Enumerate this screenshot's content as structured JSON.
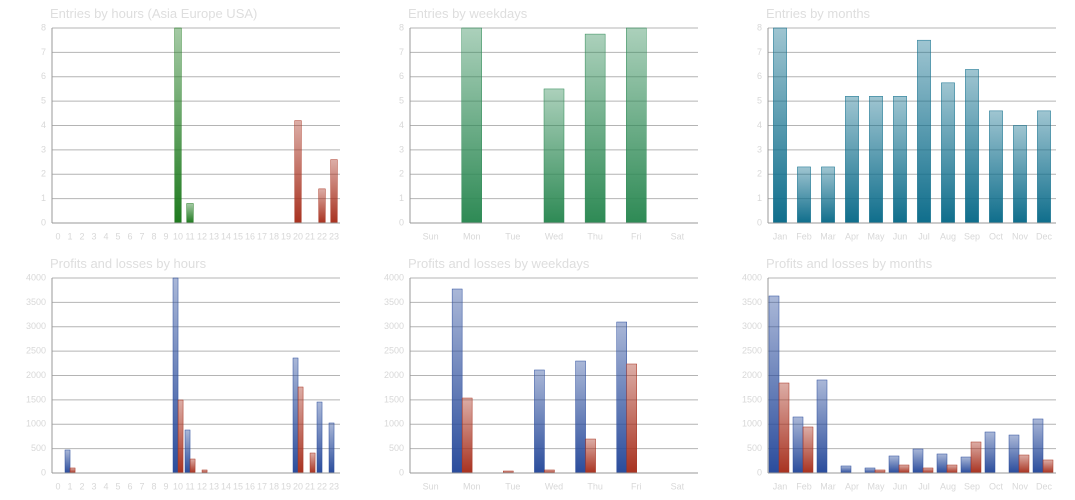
{
  "chart_data": [
    {
      "type": "bar",
      "title": "Entries by hours (Asia Europe USA)",
      "categories": [
        "0",
        "1",
        "2",
        "3",
        "4",
        "5",
        "6",
        "7",
        "8",
        "9",
        "10",
        "11",
        "12",
        "13",
        "14",
        "15",
        "16",
        "17",
        "18",
        "19",
        "20",
        "21",
        "22",
        "23"
      ],
      "values": [
        0,
        0,
        0,
        0,
        0,
        0,
        0,
        0,
        0,
        0,
        8,
        0.8,
        0,
        0,
        0,
        0,
        0,
        0,
        0,
        0,
        4.2,
        0,
        1.4,
        2.6
      ],
      "colors": [
        "#1e7a1e",
        "#1e7a1e",
        "#1e7a1e",
        "#1e7a1e",
        "#1e7a1e",
        "#1e7a1e",
        "#1e7a1e",
        "#1e7a1e",
        "#1e7a1e",
        "#1e7a1e",
        "#1e7a1e",
        "#1e7a1e",
        "#1e7a1e",
        "#1e7a1e",
        "#1e7a1e",
        "#1e7a1e",
        "#1e7a1e",
        "#1e7a1e",
        "#1e7a1e",
        "#1e7a1e",
        "#a83220",
        "#a83220",
        "#a83220",
        "#a83220"
      ],
      "ylim": [
        0,
        8
      ],
      "yticks": [
        0,
        1,
        2,
        3,
        4,
        5,
        6,
        7,
        8
      ],
      "grid": true
    },
    {
      "type": "bar",
      "title": "Entries by weekdays",
      "categories": [
        "Sun",
        "Mon",
        "Tue",
        "Wed",
        "Thu",
        "Fri",
        "Sat"
      ],
      "values": [
        0,
        8,
        0,
        5.5,
        7.75,
        8,
        0
      ],
      "color": "#2e8a55",
      "ylim": [
        0,
        8
      ],
      "yticks": [
        0,
        1,
        2,
        3,
        4,
        5,
        6,
        7,
        8
      ],
      "grid": true
    },
    {
      "type": "bar",
      "title": "Entries by months",
      "categories": [
        "Jan",
        "Feb",
        "Mar",
        "Apr",
        "May",
        "Jun",
        "Jul",
        "Aug",
        "Sep",
        "Oct",
        "Nov",
        "Dec"
      ],
      "values": [
        8,
        2.3,
        2.3,
        5.2,
        5.2,
        5.2,
        7.5,
        5.75,
        6.3,
        4.6,
        4,
        4.6
      ],
      "color": "#0f6e8c",
      "ylim": [
        0,
        8
      ],
      "yticks": [
        0,
        1,
        2,
        3,
        4,
        5,
        6,
        7,
        8
      ],
      "grid": true
    },
    {
      "type": "grouped-bar",
      "title": "Profits and losses by hours",
      "categories": [
        "0",
        "1",
        "2",
        "3",
        "4",
        "5",
        "6",
        "7",
        "8",
        "9",
        "10",
        "11",
        "12",
        "13",
        "14",
        "15",
        "16",
        "17",
        "18",
        "19",
        "20",
        "21",
        "22",
        "23"
      ],
      "series": [
        {
          "color": "#2a4c9c",
          "values": [
            0,
            472,
            0,
            0,
            0,
            0,
            0,
            0,
            0,
            0,
            4000,
            882,
            0,
            0,
            0,
            0,
            0,
            0,
            0,
            0,
            2359,
            0,
            1456,
            1026
          ]
        },
        {
          "color": "#a83220",
          "values": [
            0,
            103,
            0,
            0,
            0,
            0,
            0,
            0,
            0,
            0,
            1497,
            287,
            62,
            0,
            0,
            0,
            0,
            0,
            0,
            0,
            1764,
            410,
            0,
            0
          ]
        }
      ],
      "ylim": [
        0,
        4000
      ],
      "yticks": [
        0,
        500,
        1000,
        1500,
        2000,
        2500,
        3000,
        3500,
        4000
      ],
      "grid": true
    },
    {
      "type": "grouped-bar",
      "title": "Profits and losses by weekdays",
      "categories": [
        "Sun",
        "Mon",
        "Tue",
        "Wed",
        "Thu",
        "Fri",
        "Sat"
      ],
      "series": [
        {
          "color": "#2a4c9c",
          "values": [
            0,
            3774,
            0,
            2113,
            2297,
            3097,
            0
          ]
        },
        {
          "color": "#a83220",
          "values": [
            0,
            1538,
            41,
            62,
            697,
            2236,
            0
          ]
        }
      ],
      "ylim": [
        0,
        4000
      ],
      "yticks": [
        0,
        500,
        1000,
        1500,
        2000,
        2500,
        3000,
        3500,
        4000
      ],
      "grid": true
    },
    {
      "type": "grouped-bar",
      "title": "Profits and losses by months",
      "categories": [
        "Jan",
        "Feb",
        "Mar",
        "Apr",
        "May",
        "Jun",
        "Jul",
        "Aug",
        "Sep",
        "Oct",
        "Nov",
        "Dec"
      ],
      "series": [
        {
          "color": "#2a4c9c",
          "values": [
            3631,
            1149,
            1908,
            144,
            103,
            349,
            492,
            390,
            328,
            841,
            779,
            1108
          ]
        },
        {
          "color": "#a83220",
          "values": [
            1846,
            944,
            0,
            0,
            62,
            164,
            103,
            164,
            636,
            0,
            369,
            267
          ]
        }
      ],
      "ylim": [
        0,
        4000
      ],
      "yticks": [
        0,
        500,
        1000,
        1500,
        2000,
        2500,
        3000,
        3500,
        4000
      ],
      "grid": true
    }
  ]
}
